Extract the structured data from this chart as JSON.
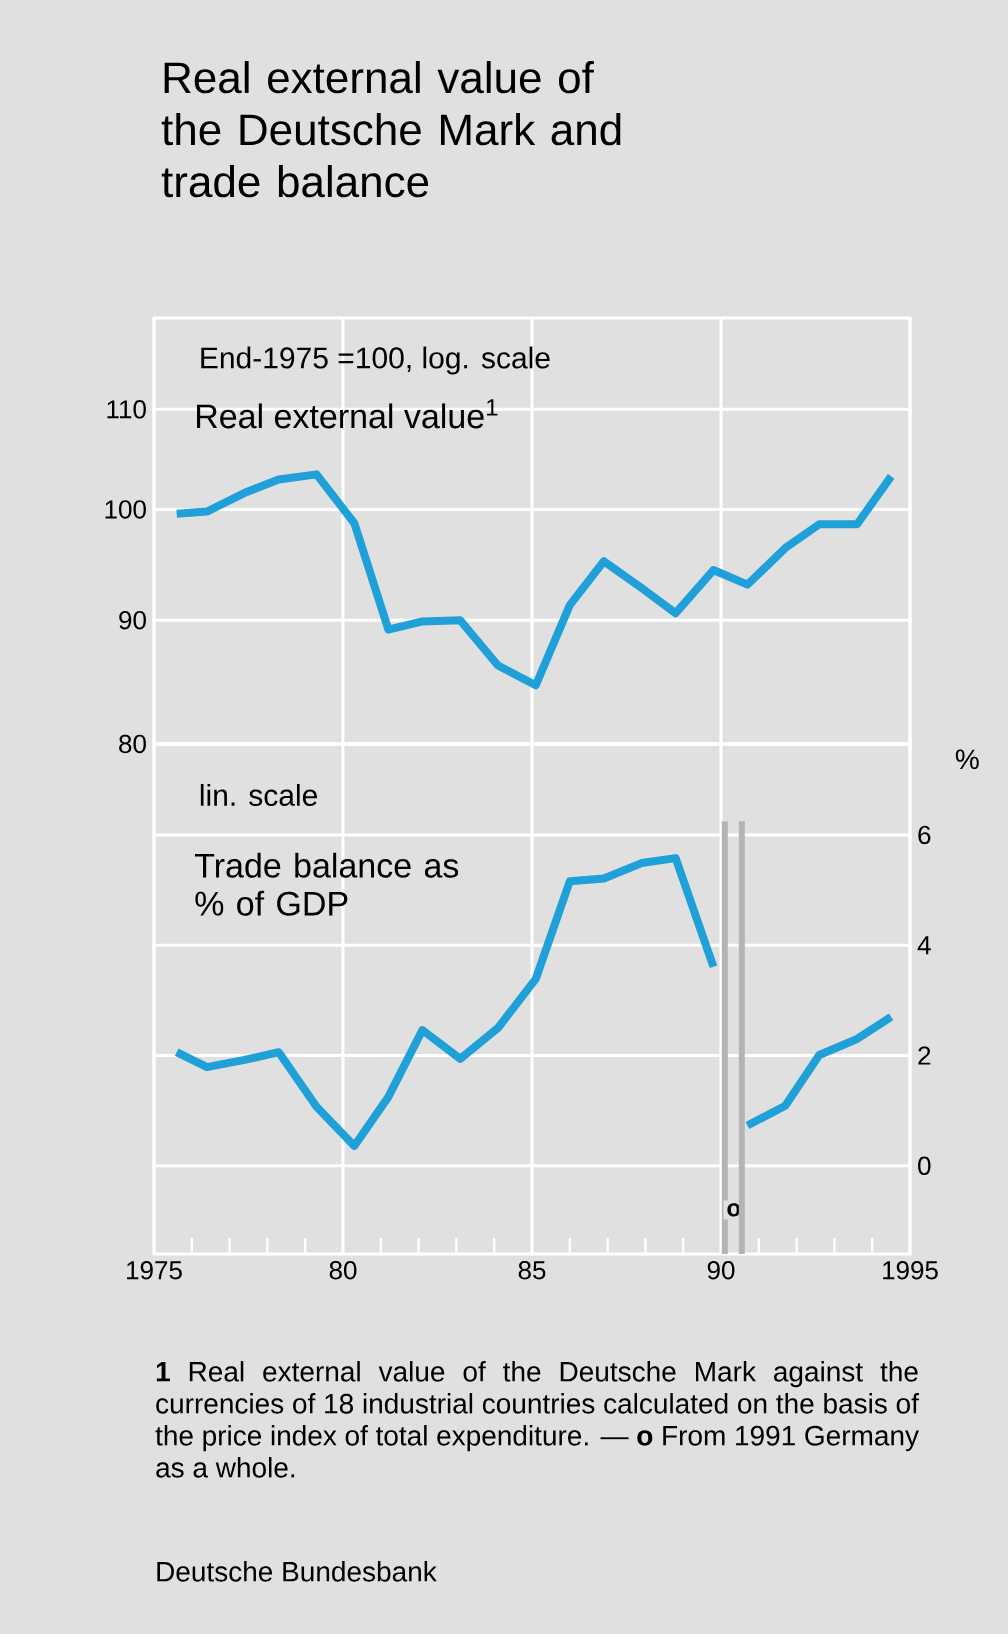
{
  "chart_data": [
    {
      "type": "line",
      "title": "Real external value of the Deutsche Mark and trade balance",
      "x": [
        1975.6,
        1976.4,
        1977.4,
        1978.3,
        1979.3,
        1980.3,
        1981.2,
        1982.1,
        1983.1,
        1984.1,
        1985.1,
        1986.0,
        1986.9,
        1987.9,
        1988.8,
        1989.8,
        1990.7,
        1991.7,
        1992.6,
        1993.6,
        1994.5
      ],
      "series": [
        {
          "color": "#1fa0d8",
          "values": [
            99.6,
            99.8,
            101.6,
            102.9,
            103.4,
            98.7,
            89.2,
            89.9,
            90.0,
            86.2,
            84.6,
            91.3,
            95.2,
            92.8,
            90.6,
            94.4,
            93.1,
            96.4,
            98.6,
            98.6,
            103.2
          ]
        }
      ],
      "log": "y",
      "xlim": [
        1975,
        1995
      ],
      "xticks": [
        1975,
        1980,
        1985,
        1990,
        1995
      ],
      "ylim": [
        80,
        120
      ],
      "yticks": [
        80,
        90,
        100,
        110
      ],
      "grid": true,
      "tick_labels": "y",
      "annotations": [
        "End-1975 =100, log. scale",
        "Real external value$^{1}$"
      ]
    },
    {
      "type": "line",
      "x": [
        1975.6,
        1976.4,
        1977.4,
        1978.3,
        1979.3,
        1980.3,
        1981.2,
        1982.1,
        1983.1,
        1984.1,
        1985.1,
        1986.0,
        1986.9,
        1987.9,
        1988.8,
        1989.8,
        1990.25,
        1990.7,
        1991.7,
        1992.6,
        1993.6,
        1994.5
      ],
      "series": [
        {
          "color": "#1fa0d8",
          "axis": "y2",
          "values": [
            2.06,
            1.79,
            1.92,
            2.06,
            1.07,
            0.36,
            1.25,
            2.46,
            1.94,
            2.5,
            3.39,
            5.16,
            5.21,
            5.49,
            5.58,
            3.61,
            null,
            0.73,
            1.09,
            2.01,
            2.3,
            2.7
          ]
        }
      ],
      "xlim": [
        1975,
        1995
      ],
      "xticks": [
        1975,
        {
          "value": 1980,
          "label": "80"
        },
        {
          "value": 1985,
          "label": "85"
        },
        {
          "value": 1990,
          "label": "90"
        },
        1995
      ],
      "y2lim": [
        -1.6,
        7.65
      ],
      "y2ticks": [
        0,
        2,
        4,
        6
      ],
      "y2label": "%",
      "grid": true,
      "ref_lines": [
        {
          "axis": "x",
          "value": 1990.1,
          "label": "o",
          "color": "#b4b4b4"
        },
        {
          "axis": "x",
          "value": 1990.55,
          "color": "#b4b4b4"
        }
      ],
      "annotations": [
        "lin. scale",
        "Trade balance as % of GDP",
        "**1** Real external value of the Deutsche Mark against the currencies of 18 industrial countries calculated on the basis of the price index of total expenditure. — **o** From 1991 Germany as a whole.",
        "Deutsche Bundesbank"
      ]
    }
  ]
}
